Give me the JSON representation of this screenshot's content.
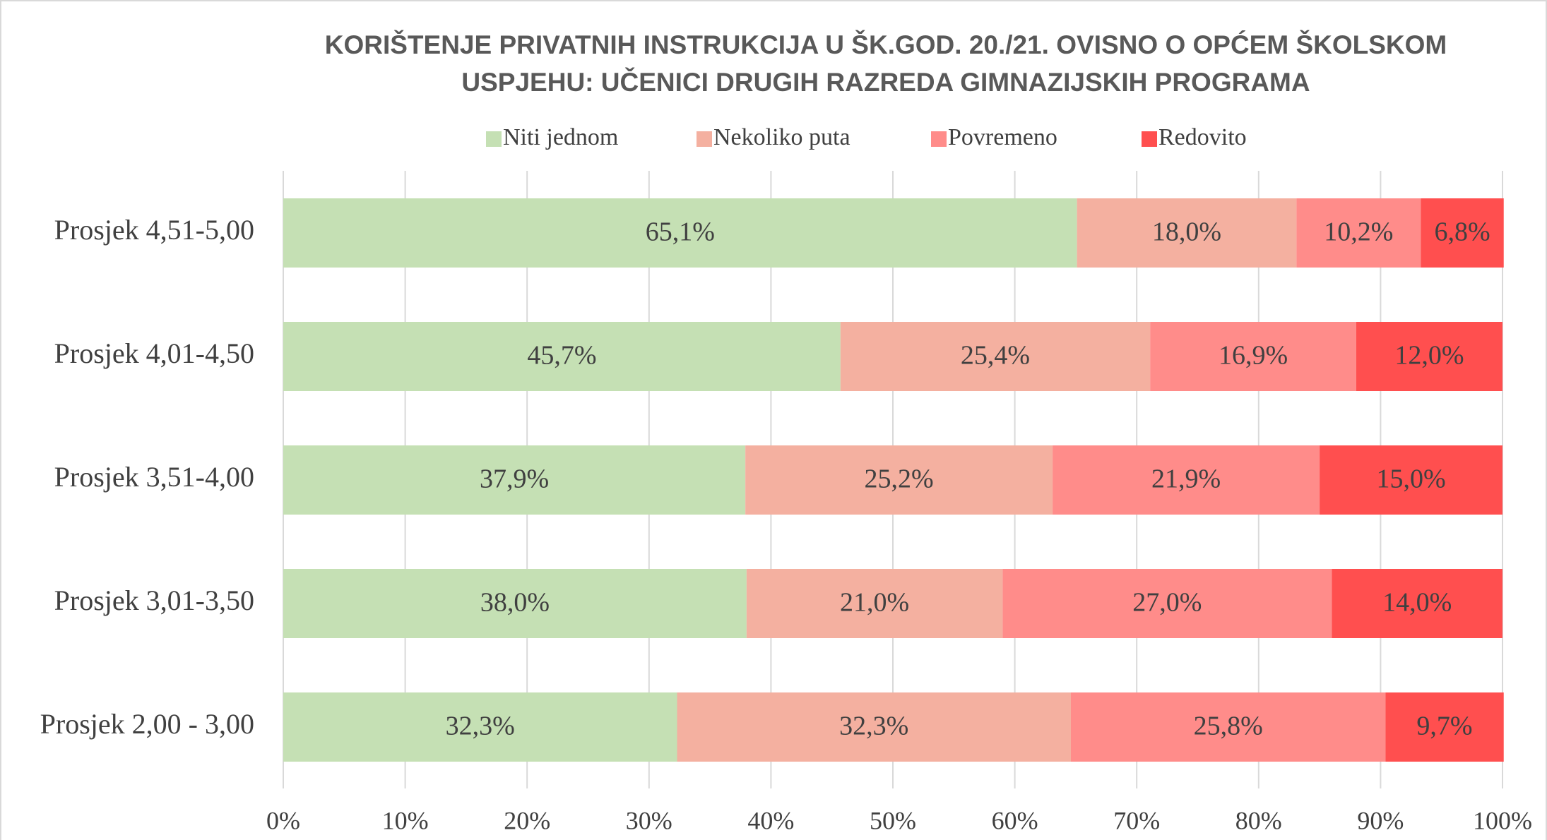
{
  "chart_data": {
    "type": "stacked_barh",
    "title": [
      "KORIŠTENJE PRIVATNIH INSTRUKCIJA U ŠK.GOD. 20./21. OVISNO O OPĆEM ŠKOLSKOM",
      "USPJEHU: UČENICI DRUGIH RAZREDA GIMNAZIJSKIH PROGRAMA"
    ],
    "categories": [
      "Prosjek 4,51-5,00",
      "Prosjek 4,01-4,50",
      "Prosjek 3,51-4,00",
      "Prosjek 3,01-3,50",
      "Prosjek 2,00 - 3,00"
    ],
    "series": [
      {
        "name": "Niti jednom",
        "color": "#c5e0b4",
        "values": [
          65.1,
          45.7,
          37.9,
          38.0,
          32.3
        ],
        "value_labels": [
          "65,1%",
          "45,7%",
          "37,9%",
          "38,0%",
          "32,3%"
        ]
      },
      {
        "name": "Nekoliko puta",
        "color": "#f4b0a0",
        "values": [
          18.0,
          25.4,
          25.2,
          21.0,
          32.3
        ],
        "value_labels": [
          "18,0%",
          "25,4%",
          "25,2%",
          "21,0%",
          "32,3%"
        ]
      },
      {
        "name": "Povremeno",
        "color": "#ff8c8a",
        "values": [
          10.2,
          16.9,
          21.9,
          27.0,
          25.8
        ],
        "value_labels": [
          "10,2%",
          "16,9%",
          "21,9%",
          "27,0%",
          "25,8%"
        ]
      },
      {
        "name": "Redovito",
        "color": "#ff4f4f",
        "values": [
          6.8,
          12.0,
          15.0,
          14.0,
          9.7
        ],
        "value_labels": [
          "6,8%",
          "12,0%",
          "15,0%",
          "14,0%",
          "9,7%"
        ]
      }
    ],
    "xlim": [
      0,
      100
    ],
    "xticks": [
      {
        "value": 0,
        "label": "0%"
      },
      {
        "value": 10,
        "label": "10%"
      },
      {
        "value": 20,
        "label": "20%"
      },
      {
        "value": 30,
        "label": "30%"
      },
      {
        "value": 40,
        "label": "40%"
      },
      {
        "value": 50,
        "label": "50%"
      },
      {
        "value": 60,
        "label": "60%"
      },
      {
        "value": 70,
        "label": "70%"
      },
      {
        "value": 80,
        "label": "80%"
      },
      {
        "value": 90,
        "label": "90%"
      },
      {
        "value": 100,
        "label": "100%"
      }
    ],
    "grid": true,
    "legend": "top"
  }
}
